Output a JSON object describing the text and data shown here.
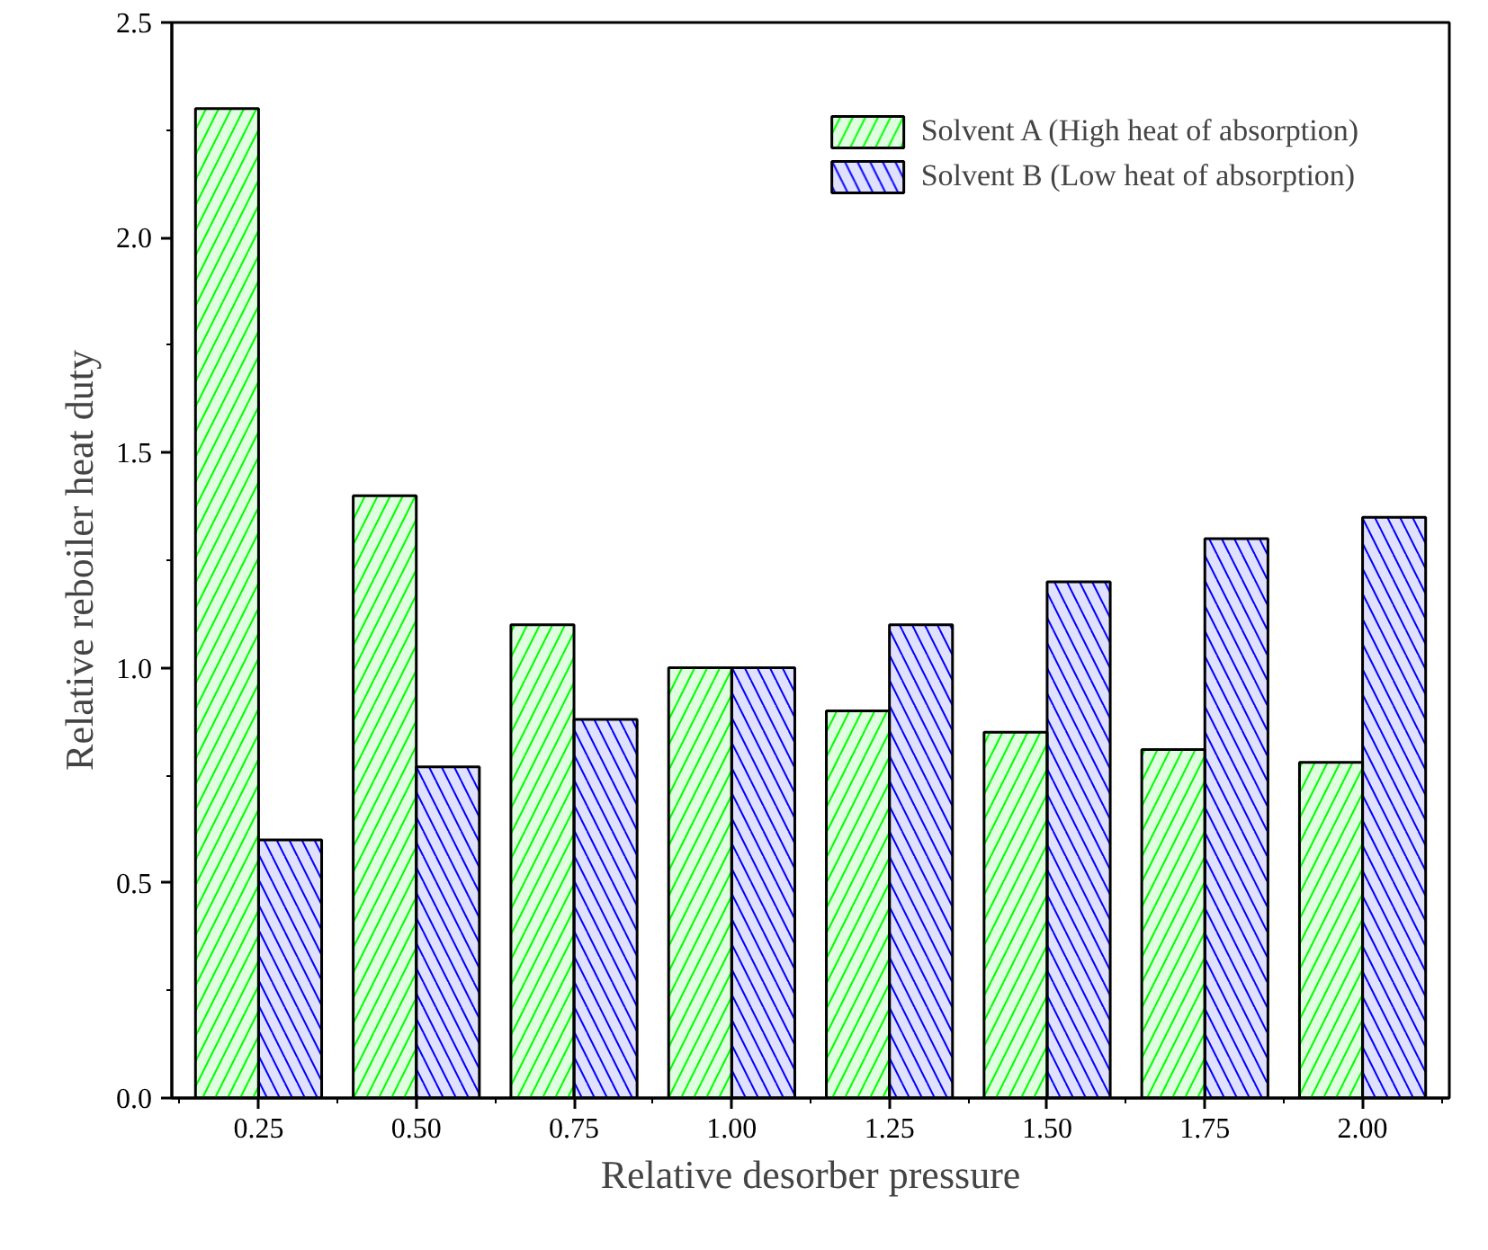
{
  "chart_data": {
    "type": "bar",
    "xlabel": "Relative desorber pressure",
    "ylabel": "Relative reboiler heat duty",
    "categories": [
      "0.25",
      "0.50",
      "0.75",
      "1.00",
      "1.25",
      "1.50",
      "1.75",
      "2.00"
    ],
    "series": [
      {
        "name": "Solvent A (High heat of absorption)",
        "color": "#00ff00",
        "values": [
          2.3,
          1.4,
          1.1,
          1.0,
          0.9,
          0.85,
          0.81,
          0.78
        ]
      },
      {
        "name": "Solvent B (Low heat of absorption)",
        "color": "#0000ff",
        "values": [
          0.6,
          0.77,
          0.88,
          1.0,
          1.1,
          1.2,
          1.3,
          1.35
        ]
      }
    ],
    "ylim": [
      0,
      2.5
    ],
    "yticks": [
      {
        "value": 0,
        "label": "0.0"
      },
      0.5,
      {
        "value": 1,
        "label": "1.0"
      },
      1.5,
      {
        "value": 2,
        "label": "2.0"
      },
      2.5
    ],
    "grid": false,
    "legend": "top right"
  }
}
